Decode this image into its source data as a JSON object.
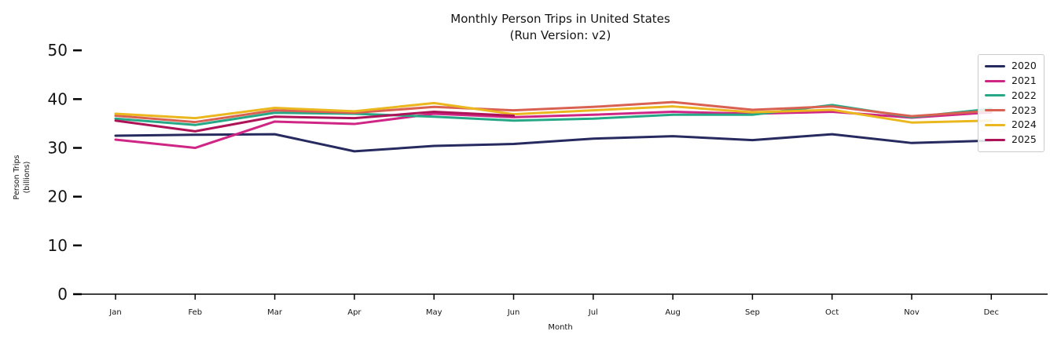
{
  "chart_data": {
    "type": "line",
    "title": "Monthly Person Trips in United States",
    "subtitle": "(Run Version: v2)",
    "xlabel": "Month",
    "ylabel": "Person Trips (billions)",
    "ylabel_line1": "Person Trips",
    "ylabel_line2": "(billions)",
    "categories": [
      "Jan",
      "Feb",
      "Mar",
      "Apr",
      "May",
      "Jun",
      "Jul",
      "Aug",
      "Sep",
      "Oct",
      "Nov",
      "Dec"
    ],
    "y_ticks": [
      0,
      10,
      20,
      30,
      40,
      50
    ],
    "ylim": [
      0,
      52
    ],
    "grid": false,
    "legend_position": "upper right",
    "axis_color": "#000000",
    "series": [
      {
        "name": "2020",
        "color": "#272a5e",
        "values": [
          32.5,
          32.7,
          32.8,
          29.3,
          30.4,
          30.8,
          31.9,
          32.4,
          31.6,
          32.8,
          31.0,
          31.5
        ]
      },
      {
        "name": "2021",
        "color": "#cf2686",
        "values": [
          31.7,
          30.0,
          35.4,
          34.9,
          37.0,
          36.3,
          36.8,
          37.4,
          37.0,
          37.4,
          36.2,
          37.3
        ]
      },
      {
        "name": "2022",
        "color": "#26a886",
        "values": [
          36.0,
          34.7,
          37.2,
          37.0,
          36.4,
          35.6,
          36.0,
          36.8,
          36.8,
          38.8,
          36.3,
          38.0
        ]
      },
      {
        "name": "2023",
        "color": "#d96152",
        "values": [
          36.6,
          35.3,
          37.7,
          37.2,
          38.4,
          37.7,
          38.4,
          39.4,
          37.8,
          38.5,
          36.5,
          37.6
        ]
      },
      {
        "name": "2024",
        "color": "#eab71e",
        "values": [
          37.0,
          36.1,
          38.2,
          37.5,
          39.2,
          36.9,
          37.7,
          38.5,
          37.3,
          37.8,
          35.2,
          35.6
        ]
      },
      {
        "name": "2025",
        "color": "#ae1357",
        "values": [
          35.6,
          33.4,
          36.4,
          36.1,
          37.4,
          36.6
        ]
      }
    ]
  }
}
